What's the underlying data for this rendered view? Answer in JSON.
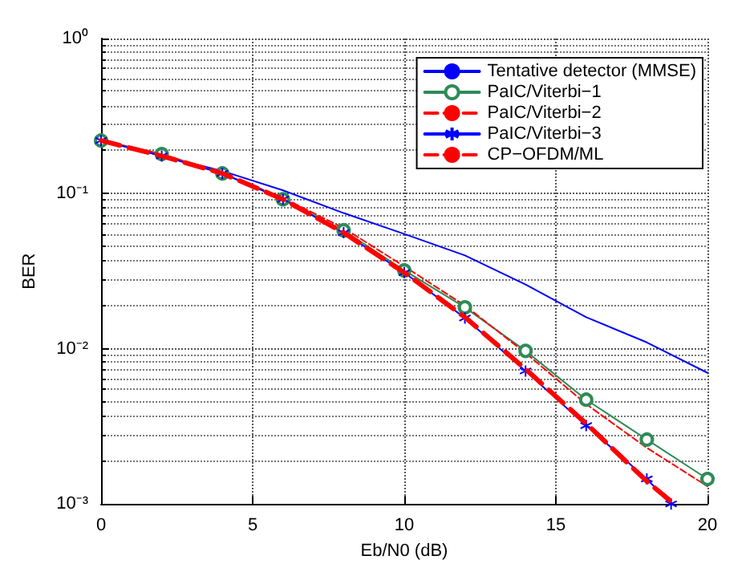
{
  "chart_data": {
    "type": "line",
    "xlabel": "Eb/N0 (dB)",
    "ylabel": "BER",
    "xlim": [
      0,
      20
    ],
    "xticks": [
      0,
      5,
      10,
      15,
      20
    ],
    "ylim": [
      0.001,
      1
    ],
    "yticks": [
      {
        "value": 0.001,
        "label": "10⁻³"
      },
      {
        "value": 0.01,
        "label": "10⁻²"
      },
      {
        "value": 0.1,
        "label": "10⁻¹"
      },
      {
        "value": 1,
        "label": "10⁰"
      }
    ],
    "log": "y",
    "grid": true,
    "legend": "top right",
    "series": [
      {
        "name": "Tentative detector (MMSE)",
        "color": "#0000ff",
        "marker": "none",
        "line_style": "solid",
        "x": [
          0,
          2,
          4,
          6,
          8,
          10,
          12,
          14,
          16,
          18,
          20
        ],
        "values": [
          0.22,
          0.175,
          0.14,
          0.105,
          0.075,
          0.055,
          0.04,
          0.026,
          0.016,
          0.011,
          0.007
        ]
      },
      {
        "name": "PaIC/Viterbi−1",
        "color": "#2e8b57",
        "marker": "circle",
        "line_style": "solid",
        "x": [
          0,
          2,
          4,
          6,
          8,
          10,
          12,
          14,
          16,
          18,
          20
        ],
        "values": [
          0.22,
          0.18,
          0.135,
          0.092,
          0.058,
          0.032,
          0.0185,
          0.0097,
          0.0047,
          0.0026,
          0.00145
        ]
      },
      {
        "name": "PaIC/Viterbi−2",
        "color": "#ff0000",
        "marker": "none",
        "line_style": "dashed",
        "x": [
          0,
          2,
          4,
          6,
          8,
          10,
          12,
          14,
          16,
          18,
          20
        ],
        "values": [
          0.22,
          0.18,
          0.135,
          0.094,
          0.06,
          0.034,
          0.019,
          0.0094,
          0.0044,
          0.0023,
          0.0013
        ]
      },
      {
        "name": "PaIC/Viterbi−3",
        "color": "#0000ff",
        "marker": "cross",
        "line_style": "solid",
        "x": [
          0,
          2,
          4,
          6,
          8,
          10,
          12,
          14,
          16,
          18,
          18.8
        ],
        "values": [
          0.22,
          0.175,
          0.135,
          0.092,
          0.056,
          0.031,
          0.0158,
          0.0072,
          0.0032,
          0.00145,
          0.001
        ]
      },
      {
        "name": "CP−OFDM/ML",
        "color": "#ff0000",
        "marker": "none",
        "line_style": "dashed",
        "x": [
          0,
          2,
          4,
          6,
          8,
          10,
          12,
          14,
          16,
          18,
          18.9
        ],
        "values": [
          0.22,
          0.175,
          0.135,
          0.092,
          0.056,
          0.031,
          0.016,
          0.0074,
          0.0033,
          0.0014,
          0.001
        ]
      }
    ]
  }
}
